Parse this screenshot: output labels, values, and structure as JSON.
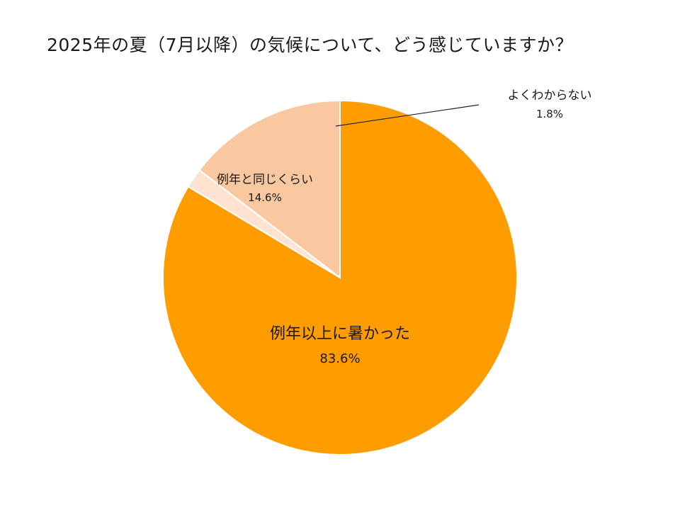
{
  "chart_data": {
    "type": "pie",
    "title": "2025年の夏（7月以降）の気候について、どう感じていますか？",
    "slices": [
      {
        "label": "例年以上に暑かった",
        "value": 83.6,
        "value_label": "83.6%",
        "color": "#FF9D00"
      },
      {
        "label": "よくわからない",
        "value": 1.8,
        "value_label": "1.8%",
        "color": "#FDE3D0"
      },
      {
        "label": "例年と同じくらい",
        "value": 14.6,
        "value_label": "14.6%",
        "color": "#F9C8A0"
      }
    ],
    "start_angle": "12 o'clock",
    "direction": "clockwise"
  }
}
